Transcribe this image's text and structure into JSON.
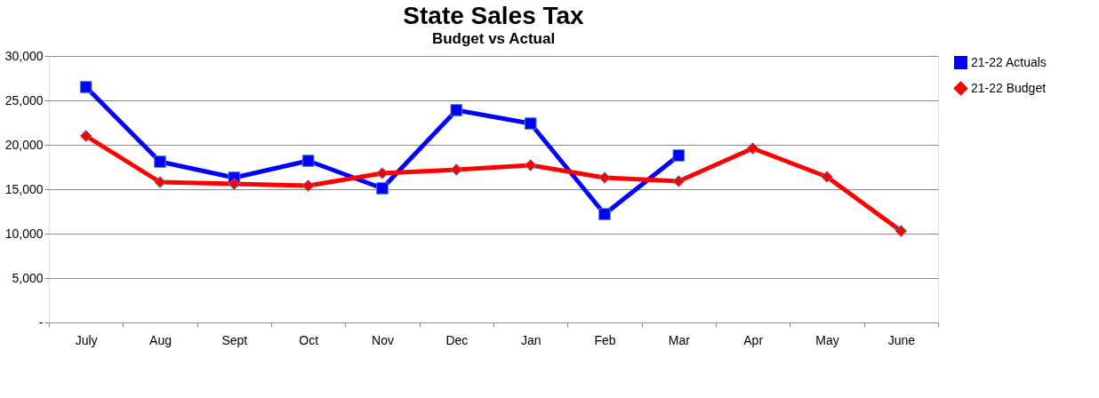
{
  "chart_data": {
    "type": "line",
    "title": "State Sales Tax",
    "subtitle": "Budget vs Actual",
    "categories": [
      "July",
      "Aug",
      "Sept",
      "Oct",
      "Nov",
      "Dec",
      "Jan",
      "Feb",
      "Mar",
      "Apr",
      "May",
      "June"
    ],
    "series": [
      {
        "name": "21-22 Actuals",
        "color": "#0000ff",
        "marker": "square",
        "values": [
          26500,
          18100,
          16300,
          18200,
          15100,
          23900,
          22400,
          12200,
          18800,
          null,
          null,
          null
        ]
      },
      {
        "name": "21-22 Budget",
        "color": "#ff0000",
        "marker": "diamond",
        "values": [
          21000,
          15800,
          15600,
          15400,
          16800,
          17200,
          17700,
          16300,
          15900,
          19600,
          16400,
          10300
        ]
      }
    ],
    "ylim": [
      0,
      30000
    ],
    "yticks": [
      {
        "value": 0,
        "label": "-"
      },
      {
        "value": 5000,
        "label": "5,000"
      },
      {
        "value": 10000,
        "label": "10,000"
      },
      {
        "value": 15000,
        "label": "15,000"
      },
      {
        "value": 20000,
        "label": "20,000"
      },
      {
        "value": 25000,
        "label": "25,000"
      },
      {
        "value": 30000,
        "label": "30,000"
      }
    ],
    "grid": "y",
    "legend": "right"
  }
}
